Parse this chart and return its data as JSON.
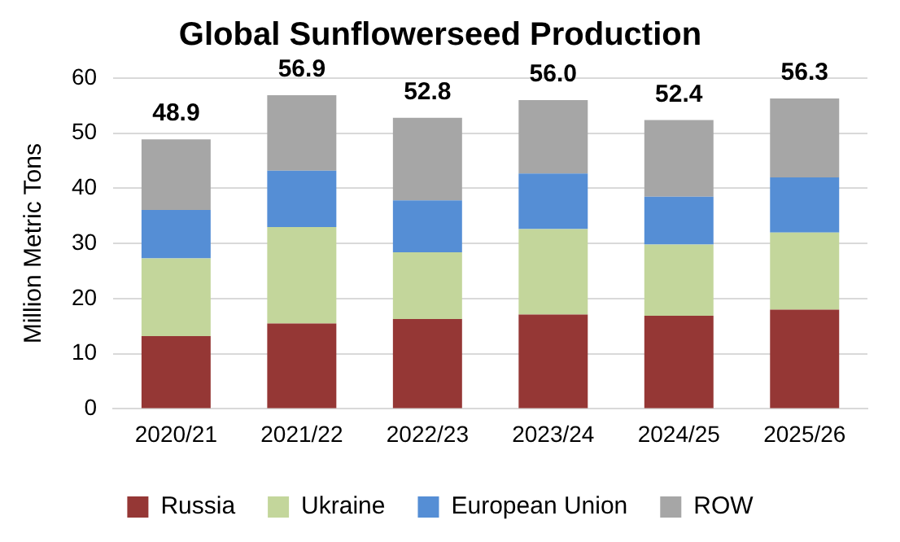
{
  "chart_data": {
    "type": "bar",
    "title": "Global Sunflowerseed Production",
    "ylabel": "Million Metric Tons",
    "stacked": true,
    "categories": [
      "2020/21",
      "2021/22",
      "2022/23",
      "2023/24",
      "2024/25",
      "2025/26"
    ],
    "series": [
      {
        "name": "Russia",
        "color": "#953735",
        "values": [
          13.2,
          15.5,
          16.3,
          17.1,
          16.9,
          18.0
        ]
      },
      {
        "name": "Ukraine",
        "color": "#c3d69b",
        "values": [
          14.1,
          17.5,
          12.1,
          15.5,
          12.9,
          14.0
        ]
      },
      {
        "name": "European Union",
        "color": "#558ed5",
        "values": [
          8.8,
          10.2,
          9.4,
          10.1,
          8.7,
          10.0
        ]
      },
      {
        "name": "ROW",
        "color": "#a6a6a6",
        "values": [
          12.8,
          13.7,
          15.0,
          13.3,
          13.9,
          14.3
        ]
      }
    ],
    "totals": [
      "48.9",
      "56.9",
      "52.8",
      "56.0",
      "52.4",
      "56.3"
    ],
    "ylim": [
      0,
      60
    ],
    "yticks": [
      0,
      10,
      20,
      30,
      40,
      50,
      60
    ],
    "grid": "y",
    "legend": "bottom"
  }
}
